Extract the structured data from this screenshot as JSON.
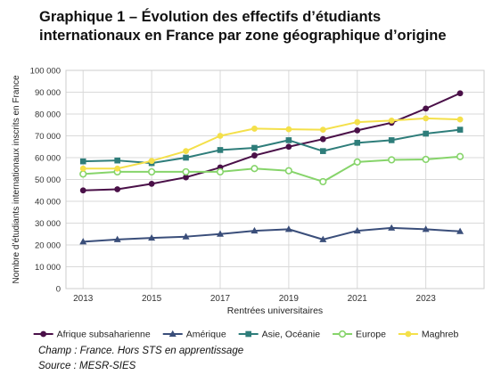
{
  "title": {
    "line1": "Graphique 1 – Évolution des effectifs d’étudiants",
    "line2": "internationaux en France par zone géographique d’origine"
  },
  "notes": {
    "champ": "Champ : France. Hors STS en apprentissage",
    "source": "Source : MESR-SIES"
  },
  "chart_data": {
    "type": "line",
    "xlabel": "Rentrées universitaires",
    "ylabel": "Nombre d’étudiants internationaux inscrits en France",
    "xlim": [
      2012.5,
      2024.7
    ],
    "ylim": [
      0,
      100000
    ],
    "x_ticks": [
      2013,
      2015,
      2017,
      2019,
      2021,
      2023
    ],
    "x_tick_labels": [
      "2013",
      "2015",
      "2017",
      "2019",
      "2021",
      "2023"
    ],
    "y_ticks": [
      0,
      10000,
      20000,
      30000,
      40000,
      50000,
      60000,
      70000,
      80000,
      90000,
      100000
    ],
    "y_tick_labels": [
      "0",
      "10 000",
      "20 000",
      "30 000",
      "40 000",
      "50 000",
      "60 000",
      "70 000",
      "80 000",
      "90 000",
      "100 000"
    ],
    "grid": true,
    "legend_position": "bottom",
    "x": [
      2013,
      2014,
      2015,
      2016,
      2017,
      2018,
      2019,
      2020,
      2021,
      2022,
      2023,
      2024
    ],
    "series": [
      {
        "name": "Afrique subsaharienne",
        "color": "#4a1048",
        "marker": "circle-filled",
        "values": [
          45000,
          45500,
          48000,
          51000,
          55500,
          61000,
          65000,
          68500,
          72500,
          76000,
          82500,
          89500
        ]
      },
      {
        "name": "Amérique",
        "color": "#3a4e7a",
        "marker": "triangle",
        "values": [
          21500,
          22500,
          23200,
          23800,
          25000,
          26500,
          27200,
          22500,
          26500,
          27800,
          27200,
          26200
        ]
      },
      {
        "name": "Asie, Océanie",
        "color": "#2e7d7a",
        "marker": "square",
        "values": [
          58300,
          58700,
          57500,
          60000,
          63500,
          64500,
          68000,
          63000,
          66800,
          68000,
          71000,
          72800
        ]
      },
      {
        "name": "Europe",
        "color": "#86d46a",
        "marker": "circle-open",
        "values": [
          52500,
          53500,
          53500,
          53500,
          53500,
          55000,
          54000,
          49000,
          58000,
          59000,
          59200,
          60500
        ]
      },
      {
        "name": "Maghreb",
        "color": "#f4e04a",
        "marker": "circle-filled",
        "values": [
          55000,
          55000,
          58500,
          63000,
          70000,
          73300,
          73000,
          72800,
          76300,
          77000,
          78000,
          77500
        ]
      }
    ]
  }
}
